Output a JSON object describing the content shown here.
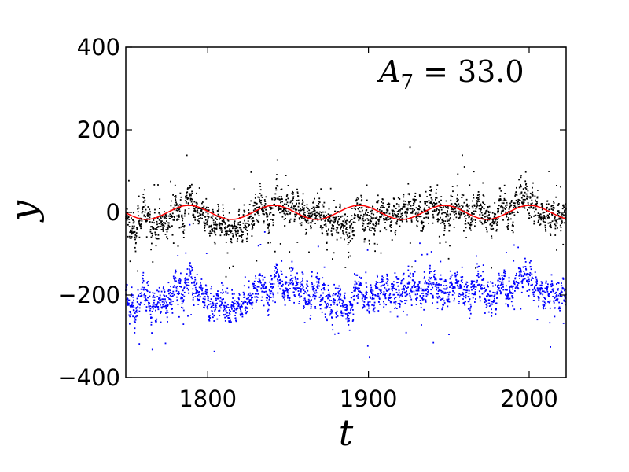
{
  "chart_data": {
    "type": "scatter",
    "xlabel": "t",
    "ylabel": "y",
    "xlim": [
      1749,
      2023
    ],
    "ylim": [
      -400,
      400
    ],
    "xticks": [
      1800,
      1900,
      2000
    ],
    "yticks": [
      -400,
      -200,
      0,
      200,
      400
    ],
    "xtick_labels": [
      "1800",
      "1900",
      "2000"
    ],
    "ytick_labels": [
      "−400",
      "−200",
      "0",
      "200",
      "400"
    ],
    "grid": false,
    "annotation": {
      "symbol": "A",
      "subscript": "7",
      "text": " = 33.0"
    },
    "series": [
      {
        "color": "#000000",
        "style": "points",
        "anchors_t": [
          1749,
          1755,
          1760,
          1765,
          1770,
          1776,
          1780,
          1785,
          1788,
          1792,
          1798,
          1803,
          1808,
          1813,
          1818,
          1824,
          1828,
          1833,
          1838,
          1843,
          1848,
          1853,
          1858,
          1863,
          1868,
          1873,
          1878,
          1883,
          1888,
          1893,
          1898,
          1903,
          1908,
          1913,
          1918,
          1923,
          1928,
          1933,
          1938,
          1943,
          1948,
          1953,
          1958,
          1963,
          1968,
          1973,
          1978,
          1983,
          1988,
          1993,
          1998,
          2003,
          2008,
          2013,
          2018,
          2023
        ],
        "anchors_y": [
          -15,
          -55,
          10,
          -40,
          -25,
          -30,
          20,
          -20,
          55,
          0,
          -5,
          -40,
          -20,
          -50,
          -35,
          -30,
          -10,
          25,
          -20,
          45,
          0,
          20,
          5,
          -20,
          10,
          -30,
          -25,
          -15,
          -60,
          20,
          -25,
          -20,
          10,
          -10,
          -5,
          10,
          15,
          -15,
          25,
          5,
          -10,
          15,
          10,
          -15,
          20,
          -5,
          -30,
          30,
          -10,
          30,
          40,
          15,
          -10,
          -5,
          -15,
          0
        ]
      },
      {
        "color": "#0000ff",
        "style": "points",
        "anchors_t": [
          1749,
          1755,
          1760,
          1765,
          1770,
          1776,
          1780,
          1785,
          1788,
          1792,
          1798,
          1803,
          1808,
          1813,
          1818,
          1824,
          1828,
          1833,
          1838,
          1843,
          1848,
          1853,
          1858,
          1863,
          1868,
          1873,
          1878,
          1883,
          1888,
          1893,
          1898,
          1903,
          1908,
          1913,
          1918,
          1923,
          1928,
          1933,
          1938,
          1943,
          1948,
          1953,
          1958,
          1963,
          1968,
          1973,
          1978,
          1983,
          1988,
          1993,
          1998,
          2003,
          2008,
          2013,
          2018,
          2023
        ],
        "anchors_y": [
          -205,
          -245,
          -180,
          -235,
          -215,
          -220,
          -170,
          -210,
          -145,
          -190,
          -195,
          -240,
          -210,
          -240,
          -225,
          -220,
          -200,
          -165,
          -210,
          -145,
          -190,
          -170,
          -185,
          -210,
          -180,
          -220,
          -215,
          -205,
          -250,
          -170,
          -215,
          -210,
          -180,
          -200,
          -195,
          -180,
          -175,
          -205,
          -165,
          -185,
          -200,
          -175,
          -180,
          -205,
          -170,
          -195,
          -220,
          -160,
          -200,
          -160,
          -150,
          -175,
          -200,
          -195,
          -205,
          -190
        ]
      },
      {
        "color": "#ff0000",
        "style": "line",
        "equation": "y = 17 * sin(2*pi*(t - 1775)/53)",
        "amplitude": 17,
        "period": 53,
        "phase_t": 1775
      }
    ]
  }
}
